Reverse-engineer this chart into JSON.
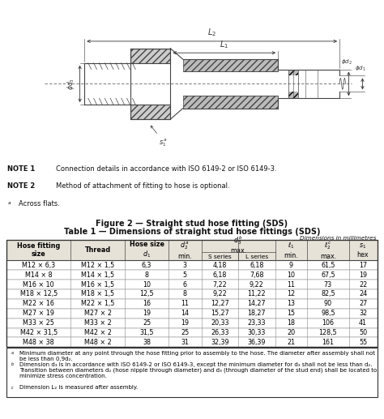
{
  "figure_caption": "Figure 2 — Straight stud hose fitting (SDS)",
  "table_title": "Table 1 — Dimensions of straight stud hose fittings (SDS)",
  "dim_note": "Dimensions in millimetres",
  "notes": [
    [
      "NOTE 1",
      "Connection details in accordance with ISO 6149-2 or ISO 6149-3."
    ],
    [
      "NOTE 2",
      "Method of attachment of fitting to hose is optional."
    ]
  ],
  "footnote_a": "Across flats.",
  "table_footnote_a": "Minimum diameter at any point through the hose fitting prior to assembly to the hose. The diameter after assembly shall not be less than 0,9d₂.",
  "table_footnote_b": "Dimension d₃ is in accordance with ISO 6149-2 or ISO 6149-3, except the minimum diameter for d₃ shall not be less than d₂. Transition between diameters d₂ (hose nipple through diameter) and d₃ (through diameter of the stud end) shall be located to minimize stress concentration.",
  "table_footnote_c": "Dimension L₂ is measured after assembly.",
  "rows": [
    [
      "M12 × 6,3",
      "M12 × 1,5",
      "6,3",
      "3",
      "4,18",
      "6,18",
      "9",
      "61,5",
      "17"
    ],
    [
      "M14 × 8",
      "M14 × 1,5",
      "8",
      "5",
      "6,18",
      "7,68",
      "10",
      "67,5",
      "19"
    ],
    [
      "M16 × 10",
      "M16 × 1,5",
      "10",
      "6",
      "7,22",
      "9,22",
      "11",
      "73",
      "22"
    ],
    [
      "M18 × 12,5",
      "M18 × 1,5",
      "12,5",
      "8",
      "9,22",
      "11,22",
      "12",
      "82,5",
      "24"
    ],
    [
      "M22 × 16",
      "M22 × 1,5",
      "16",
      "11",
      "12,27",
      "14,27",
      "13",
      "90",
      "27"
    ],
    [
      "M27 × 19",
      "M27 × 2",
      "19",
      "14",
      "15,27",
      "18,27",
      "15",
      "98,5",
      "32"
    ],
    [
      "M33 × 25",
      "M33 × 2",
      "25",
      "19",
      "20,33",
      "23,33",
      "18",
      "106",
      "41"
    ],
    [
      "M42 × 31,5",
      "M42 × 2",
      "31,5",
      "25",
      "26,33",
      "30,33",
      "20",
      "128,5",
      "50"
    ],
    [
      "M48 × 38",
      "M48 × 2",
      "38",
      "31",
      "32,39",
      "36,39",
      "21",
      "161",
      "55"
    ]
  ],
  "bg_color": "#ffffff",
  "header_bg": "#e8e4dc"
}
